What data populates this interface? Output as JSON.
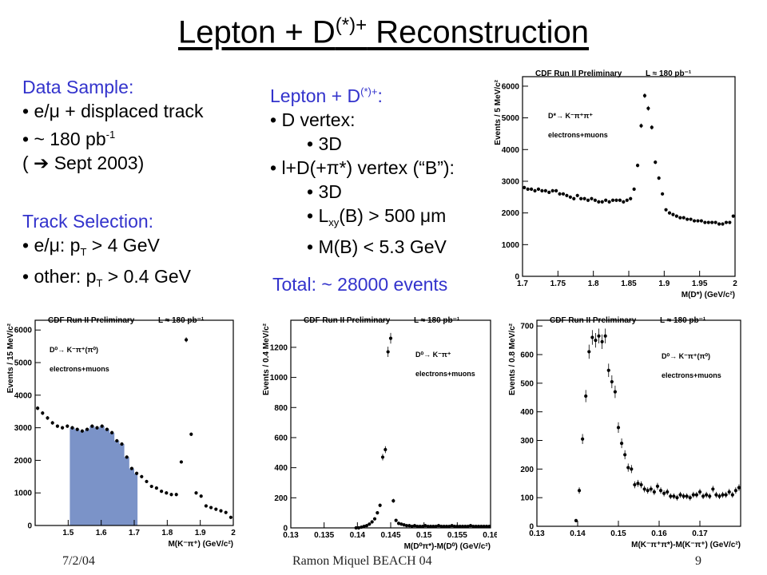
{
  "slide": {
    "title_main": "Lepton + D",
    "title_sup": "(*)+",
    "title_rest": " Reconstruction",
    "data_sample": {
      "head": "Data Sample:",
      "l1": "• e/μ + displaced track",
      "l2a": "• ~ 180 pb",
      "l2sup": "-1",
      "l3": "( ➔ Sept 2003)"
    },
    "track_selection": {
      "head": "Track Selection:",
      "l1a": "• e/μ: p",
      "l1sub": "T",
      "l1b": " > 4 GeV",
      "l2a": "• other: p",
      "l2sub": "T",
      "l2b": " > 0.4 GeV"
    },
    "lepton": {
      "head_a": "Lepton + D",
      "head_sup": "(*)+",
      "head_b": ":",
      "l1": "• D vertex:",
      "l2": "• 3D",
      "l3": "• l+D(+π*) vertex (“B”):",
      "l4": "• 3D",
      "l5a": "• L",
      "l5sub": "xy",
      "l5b": "(B) > 500 μm",
      "l6": "• M(B) < 5.3 GeV"
    },
    "total": "Total: ~ 28000 events",
    "footer": {
      "date": "7/2/04",
      "author": "Ramon Miquel     BEACH 04",
      "page": "9"
    }
  },
  "chart_data": [
    {
      "type": "scatter",
      "id": "top-right",
      "header": "CDF Run II Preliminary",
      "lumi": "L  ≈ 180 pb⁻¹",
      "decay": "D*→ K⁻π⁺π⁺",
      "sample": "electrons+muons",
      "ylabel": "Events / 5 MeV/c²",
      "xlabel": "M(D*) (GeV/c²)",
      "xlim": [
        1.7,
        2.0
      ],
      "ylim": [
        0,
        6300
      ],
      "xticks": [
        1.7,
        1.75,
        1.8,
        1.85,
        1.9,
        1.95,
        2.0
      ],
      "xticklabels": [
        "1.7",
        "1.75",
        "1.8",
        "1.85",
        "1.9",
        "1.95",
        "2"
      ],
      "yticks": [
        0,
        1000,
        2000,
        3000,
        4000,
        5000,
        6000
      ],
      "x": [
        1.7025,
        1.7075,
        1.7125,
        1.7175,
        1.7225,
        1.7275,
        1.7325,
        1.7375,
        1.7425,
        1.7475,
        1.7525,
        1.7575,
        1.7625,
        1.7675,
        1.7725,
        1.7775,
        1.7825,
        1.7875,
        1.7925,
        1.7975,
        1.8025,
        1.8075,
        1.8125,
        1.8175,
        1.8225,
        1.8275,
        1.8325,
        1.8375,
        1.8425,
        1.8475,
        1.8525,
        1.8575,
        1.8625,
        1.8675,
        1.8725,
        1.8775,
        1.8825,
        1.8875,
        1.8925,
        1.8975,
        1.9025,
        1.9075,
        1.9125,
        1.9175,
        1.9225,
        1.9275,
        1.9325,
        1.9375,
        1.9425,
        1.9475,
        1.9525,
        1.9575,
        1.9625,
        1.9675,
        1.9725,
        1.9775,
        1.9825,
        1.9875,
        1.9925,
        1.9975
      ],
      "y": [
        2800,
        2750,
        2750,
        2700,
        2750,
        2700,
        2700,
        2650,
        2700,
        2700,
        2600,
        2600,
        2550,
        2500,
        2450,
        2550,
        2450,
        2450,
        2400,
        2450,
        2400,
        2350,
        2350,
        2400,
        2350,
        2400,
        2400,
        2400,
        2350,
        2400,
        2450,
        2750,
        3500,
        4750,
        5700,
        5300,
        4700,
        3600,
        3100,
        2600,
        2100,
        2000,
        1950,
        1900,
        1850,
        1850,
        1800,
        1800,
        1750,
        1750,
        1750,
        1700,
        1700,
        1700,
        1700,
        1650,
        1650,
        1700,
        1700,
        1900
      ],
      "fill_range": null
    },
    {
      "type": "scatter",
      "id": "bottom-left",
      "header": "CDF Run II Preliminary",
      "lumi": "L  ≈ 180 pb⁻¹",
      "decay": "D⁰→ K⁻π⁺(π⁰)",
      "sample": "electrons+muons",
      "ylabel": "Events / 15 MeV/c²",
      "xlabel": "M(K⁻π⁺) (GeV/c²)",
      "xlim": [
        1.4,
        2.0
      ],
      "ylim": [
        0,
        6300
      ],
      "xticks": [
        1.5,
        1.6,
        1.7,
        1.8,
        1.9,
        2.0
      ],
      "xticklabels": [
        "1.5",
        "1.6",
        "1.7",
        "1.8",
        "1.9",
        "2"
      ],
      "yticks": [
        0,
        1000,
        2000,
        3000,
        4000,
        5000,
        6000
      ],
      "x": [
        1.4075,
        1.4225,
        1.4375,
        1.4525,
        1.4675,
        1.4825,
        1.4975,
        1.5125,
        1.5275,
        1.5425,
        1.5575,
        1.5725,
        1.5875,
        1.6025,
        1.6175,
        1.6325,
        1.6475,
        1.6625,
        1.6775,
        1.6925,
        1.7075,
        1.7225,
        1.7375,
        1.7525,
        1.7675,
        1.7825,
        1.7975,
        1.8125,
        1.8275,
        1.8425,
        1.8575,
        1.8725,
        1.8875,
        1.9025,
        1.9175,
        1.9325,
        1.9475,
        1.9625,
        1.9775,
        1.9925
      ],
      "y": [
        3600,
        3450,
        3300,
        3150,
        3050,
        3000,
        3050,
        3000,
        2950,
        2900,
        2950,
        3050,
        3000,
        3050,
        2950,
        2850,
        2600,
        2500,
        2100,
        1750,
        1600,
        1500,
        1350,
        1200,
        1150,
        1050,
        1000,
        950,
        950,
        1950,
        5700,
        2800,
        1000,
        900,
        600,
        550,
        500,
        450,
        400,
        250
      ],
      "fill_range": [
        1.5,
        1.71
      ]
    },
    {
      "type": "scatter",
      "id": "bottom-middle",
      "header": "CDF Run II Preliminary",
      "lumi": "L  ≈ 180 pb⁻¹",
      "decay": "D⁰→ K⁻π⁺",
      "sample": "electrons+muons",
      "ylabel": "Events / 0.4 MeV/c²",
      "xlabel": "M(D⁰π*)-M(D⁰) (GeV/c²)",
      "xlim": [
        0.13,
        0.16
      ],
      "ylim": [
        0,
        1380
      ],
      "xticks": [
        0.13,
        0.135,
        0.14,
        0.145,
        0.15,
        0.155,
        0.16
      ],
      "xticklabels": [
        "0.13",
        "0.135",
        "0.14",
        "0.145",
        "0.15",
        "0.155",
        "0.16"
      ],
      "yticks": [
        0,
        200,
        400,
        600,
        800,
        1000,
        1200
      ],
      "x": [
        0.1398,
        0.1402,
        0.1406,
        0.141,
        0.1414,
        0.1418,
        0.1422,
        0.1426,
        0.143,
        0.1434,
        0.1438,
        0.1442,
        0.1446,
        0.145,
        0.1454,
        0.1458,
        0.1462,
        0.1466,
        0.147,
        0.1474,
        0.1478,
        0.1482,
        0.1486,
        0.149,
        0.1494,
        0.1498,
        0.1502,
        0.1506,
        0.151,
        0.1514,
        0.1518,
        0.1522,
        0.1526,
        0.153,
        0.1534,
        0.1538,
        0.1542,
        0.1546,
        0.155,
        0.1554,
        0.1558,
        0.1562,
        0.1566,
        0.157,
        0.1574,
        0.1578,
        0.1582,
        0.1586,
        0.159,
        0.1594,
        0.1598
      ],
      "y": [
        0,
        0,
        5,
        10,
        15,
        25,
        40,
        60,
        100,
        150,
        470,
        520,
        1170,
        1260,
        180,
        50,
        30,
        25,
        20,
        15,
        15,
        10,
        15,
        10,
        10,
        10,
        15,
        10,
        10,
        10,
        10,
        15,
        10,
        10,
        10,
        10,
        15,
        10,
        10,
        10,
        10,
        10,
        10,
        15,
        10,
        10,
        10,
        10,
        10,
        10,
        10
      ],
      "fill_range": null
    },
    {
      "type": "scatter",
      "id": "bottom-right",
      "header": "CDF Run II Preliminary",
      "lumi": "L  ≈ 180 pb⁻¹",
      "decay": "D⁰→ K⁻π⁺(π⁰)",
      "sample": "electrons+muons",
      "ylabel": "Events / 0.8 MeV/c²",
      "xlabel": "M(K⁻π⁺π*)-M(K⁻π⁺) (GeV/c²)",
      "xlim": [
        0.13,
        0.18
      ],
      "ylim": [
        0,
        720
      ],
      "xticks": [
        0.13,
        0.14,
        0.15,
        0.16,
        0.17
      ],
      "xticklabels": [
        "0.13",
        "0.14",
        "0.15",
        "0.16",
        "0.17"
      ],
      "yticks": [
        0,
        100,
        200,
        300,
        400,
        500,
        600,
        700
      ],
      "x": [
        0.1396,
        0.1404,
        0.1412,
        0.142,
        0.1428,
        0.1436,
        0.1444,
        0.1452,
        0.146,
        0.1468,
        0.1476,
        0.1484,
        0.1492,
        0.15,
        0.1508,
        0.1516,
        0.1524,
        0.1532,
        0.154,
        0.1548,
        0.1556,
        0.1564,
        0.1572,
        0.158,
        0.1588,
        0.1596,
        0.1604,
        0.1612,
        0.162,
        0.1628,
        0.1636,
        0.1644,
        0.1652,
        0.166,
        0.1668,
        0.1676,
        0.1684,
        0.1692,
        0.17,
        0.1708,
        0.1716,
        0.1724,
        0.1732,
        0.174,
        0.1748,
        0.1756,
        0.1764,
        0.1772,
        0.178,
        0.1788,
        0.1796
      ],
      "y": [
        20,
        125,
        305,
        455,
        610,
        660,
        650,
        665,
        645,
        665,
        545,
        505,
        470,
        345,
        290,
        250,
        205,
        200,
        145,
        150,
        145,
        130,
        125,
        130,
        120,
        140,
        125,
        115,
        120,
        105,
        105,
        100,
        110,
        105,
        105,
        100,
        110,
        110,
        120,
        105,
        110,
        105,
        130,
        110,
        105,
        110,
        110,
        120,
        110,
        125,
        135
      ],
      "fill_range": null
    }
  ]
}
